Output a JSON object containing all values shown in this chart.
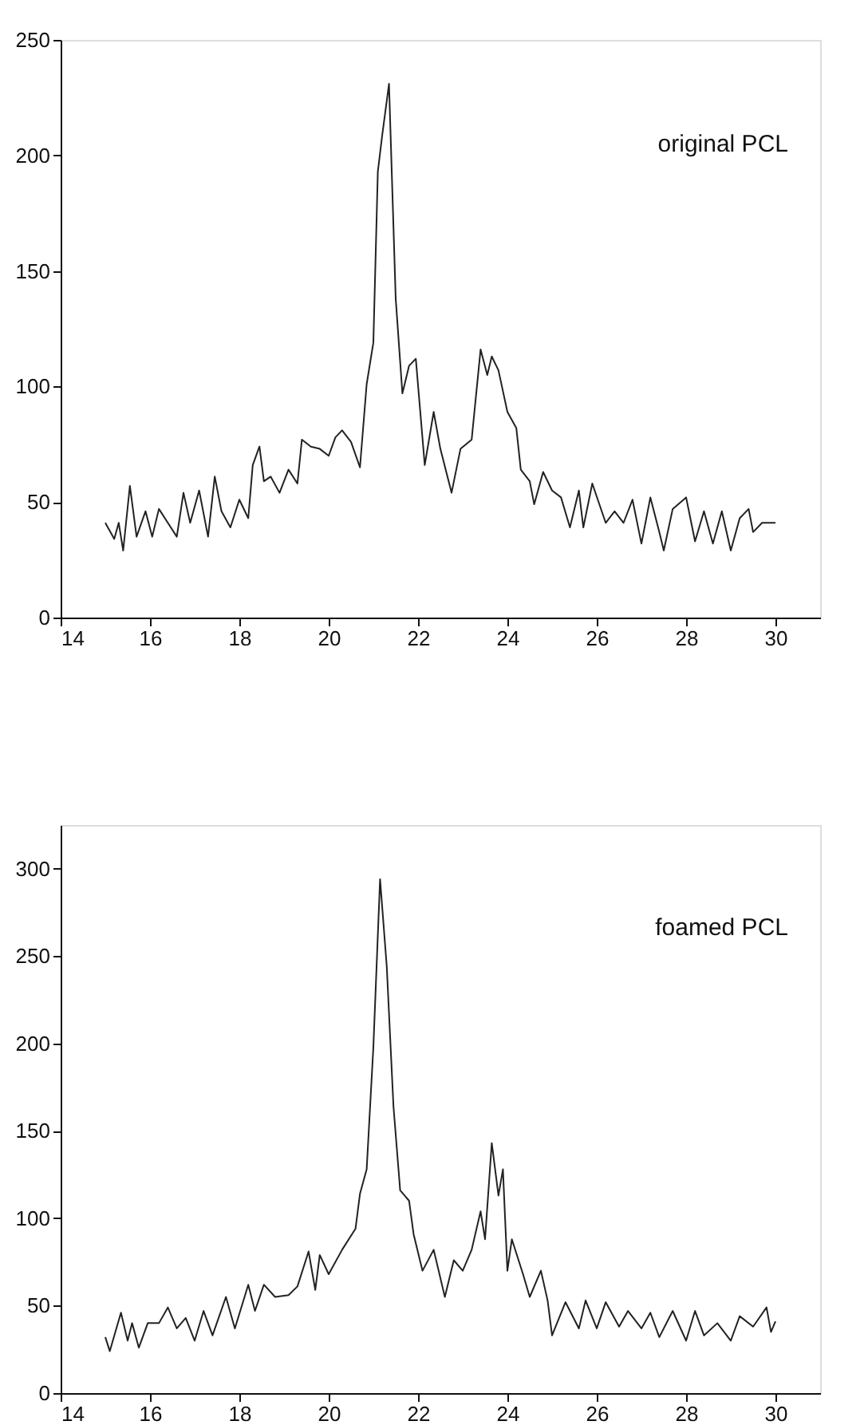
{
  "chart_data": [
    {
      "type": "line",
      "annotations": [
        "original PCL"
      ],
      "xlim": [
        14,
        31
      ],
      "xticks": [
        14,
        16,
        18,
        20,
        22,
        24,
        26,
        28,
        30
      ],
      "ylim": [
        0,
        250
      ],
      "yticks": [
        0,
        50,
        100,
        150,
        200,
        250
      ],
      "grid": false,
      "legend": false,
      "marker": "none",
      "line_style": "solid",
      "series": [
        {
          "color": "#222222",
          "x": [
            15.0,
            15.2,
            15.3,
            15.4,
            15.55,
            15.7,
            15.9,
            16.05,
            16.2,
            16.4,
            16.6,
            16.75,
            16.9,
            17.1,
            17.3,
            17.45,
            17.6,
            17.8,
            18.0,
            18.2,
            18.3,
            18.45,
            18.55,
            18.7,
            18.9,
            19.1,
            19.3,
            19.4,
            19.6,
            19.8,
            20.0,
            20.15,
            20.3,
            20.5,
            20.7,
            20.85,
            21.0,
            21.1,
            21.2,
            21.35,
            21.5,
            21.65,
            21.8,
            21.95,
            22.15,
            22.35,
            22.5,
            22.75,
            22.95,
            23.2,
            23.4,
            23.55,
            23.65,
            23.8,
            24.0,
            24.2,
            24.3,
            24.5,
            24.6,
            24.8,
            25.0,
            25.2,
            25.4,
            25.6,
            25.7,
            25.9,
            26.2,
            26.4,
            26.6,
            26.8,
            27.0,
            27.2,
            27.4,
            27.5,
            27.7,
            28.0,
            28.2,
            28.4,
            28.6,
            28.8,
            29.0,
            29.2,
            29.4,
            29.5,
            29.7,
            30.0
          ],
          "values": [
            41,
            34,
            41,
            29,
            57,
            35,
            46,
            35,
            47,
            41,
            35,
            54,
            41,
            55,
            35,
            61,
            46,
            39,
            51,
            43,
            66,
            74,
            59,
            61,
            54,
            64,
            58,
            77,
            74,
            73,
            70,
            78,
            81,
            76,
            65,
            101,
            119,
            193,
            209,
            231,
            138,
            97,
            109,
            112,
            66,
            89,
            73,
            54,
            73,
            77,
            116,
            105,
            113,
            107,
            89,
            82,
            64,
            59,
            49,
            63,
            55,
            52,
            39,
            55,
            39,
            58,
            41,
            46,
            41,
            51,
            32,
            52,
            37,
            29,
            47,
            52,
            33,
            46,
            32,
            46,
            29,
            43,
            47,
            37,
            41,
            41
          ]
        }
      ]
    },
    {
      "type": "line",
      "annotations": [
        "foamed PCL"
      ],
      "xlim": [
        14,
        31
      ],
      "xticks": [
        14,
        16,
        18,
        20,
        22,
        24,
        26,
        28,
        30
      ],
      "ylim": [
        0,
        325
      ],
      "yticks": [
        0,
        50,
        100,
        150,
        200,
        250,
        300
      ],
      "grid": false,
      "legend": false,
      "marker": "none",
      "line_style": "solid",
      "series": [
        {
          "color": "#222222",
          "x": [
            15.0,
            15.1,
            15.35,
            15.5,
            15.6,
            15.75,
            15.95,
            16.2,
            16.4,
            16.6,
            16.8,
            17.0,
            17.2,
            17.4,
            17.7,
            17.9,
            18.2,
            18.35,
            18.55,
            18.8,
            19.1,
            19.3,
            19.55,
            19.7,
            19.8,
            20.0,
            20.3,
            20.6,
            20.7,
            20.85,
            21.0,
            21.15,
            21.3,
            21.45,
            21.6,
            21.8,
            21.9,
            22.1,
            22.35,
            22.6,
            22.8,
            23.0,
            23.2,
            23.4,
            23.5,
            23.65,
            23.8,
            23.9,
            24.0,
            24.1,
            24.35,
            24.5,
            24.75,
            24.9,
            25.0,
            25.3,
            25.6,
            25.75,
            26.0,
            26.2,
            26.5,
            26.7,
            27.0,
            27.2,
            27.4,
            27.7,
            28.0,
            28.2,
            28.4,
            28.7,
            29.0,
            29.2,
            29.5,
            29.8,
            29.9,
            30.0
          ],
          "values": [
            32,
            24,
            46,
            30,
            40,
            26,
            40,
            40,
            49,
            37,
            43,
            30,
            47,
            33,
            55,
            37,
            62,
            47,
            62,
            55,
            56,
            61,
            81,
            59,
            79,
            68,
            82,
            94,
            114,
            128,
            198,
            294,
            244,
            164,
            116,
            110,
            91,
            70,
            82,
            55,
            76,
            70,
            82,
            104,
            88,
            143,
            113,
            128,
            70,
            88,
            68,
            55,
            70,
            53,
            33,
            52,
            37,
            53,
            37,
            52,
            38,
            47,
            37,
            46,
            32,
            47,
            30,
            47,
            33,
            40,
            30,
            44,
            38,
            49,
            35,
            41
          ]
        }
      ]
    }
  ]
}
